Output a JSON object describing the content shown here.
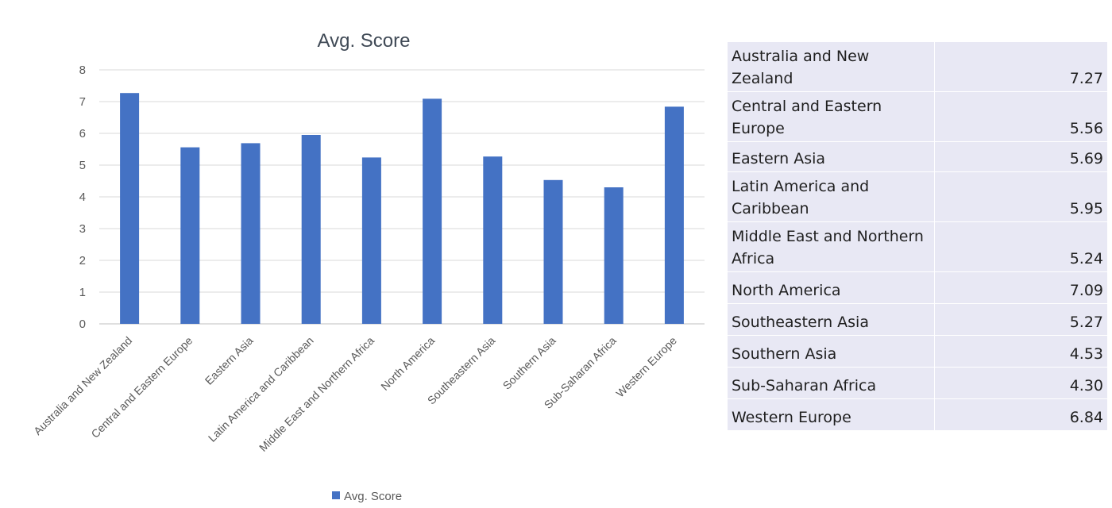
{
  "chart_data": {
    "type": "bar",
    "title": "Avg. Score",
    "categories": [
      "Australia and New Zealand",
      "Central and Eastern Europe",
      "Eastern Asia",
      "Latin America and Caribbean",
      "Middle East and Northern Africa",
      "North America",
      "Southeastern Asia",
      "Southern Asia",
      "Sub-Saharan Africa",
      "Western Europe"
    ],
    "series": [
      {
        "name": "Avg. Score",
        "values": [
          7.27,
          5.56,
          5.69,
          5.95,
          5.24,
          7.09,
          5.27,
          4.53,
          4.3,
          6.84
        ]
      }
    ],
    "ylim": [
      0,
      8
    ],
    "yticks": [
      0,
      1,
      2,
      3,
      4,
      5,
      6,
      7,
      8
    ],
    "grid": true,
    "legend": "bottom",
    "bar_color": "#4472c4"
  },
  "table": {
    "rows": [
      {
        "region": "Australia and New Zealand",
        "value": "7.27"
      },
      {
        "region": "Central and Eastern Europe",
        "value": "5.56"
      },
      {
        "region": "Eastern Asia",
        "value": "5.69"
      },
      {
        "region": "Latin America and Caribbean",
        "value": "5.95"
      },
      {
        "region": "Middle East and Northern Africa",
        "value": "5.24"
      },
      {
        "region": "North America",
        "value": "7.09"
      },
      {
        "region": "Southeastern Asia",
        "value": "5.27"
      },
      {
        "region": "Southern Asia",
        "value": "4.53"
      },
      {
        "region": "Sub-Saharan Africa",
        "value": "4.30"
      },
      {
        "region": "Western Europe",
        "value": "6.84"
      }
    ]
  }
}
